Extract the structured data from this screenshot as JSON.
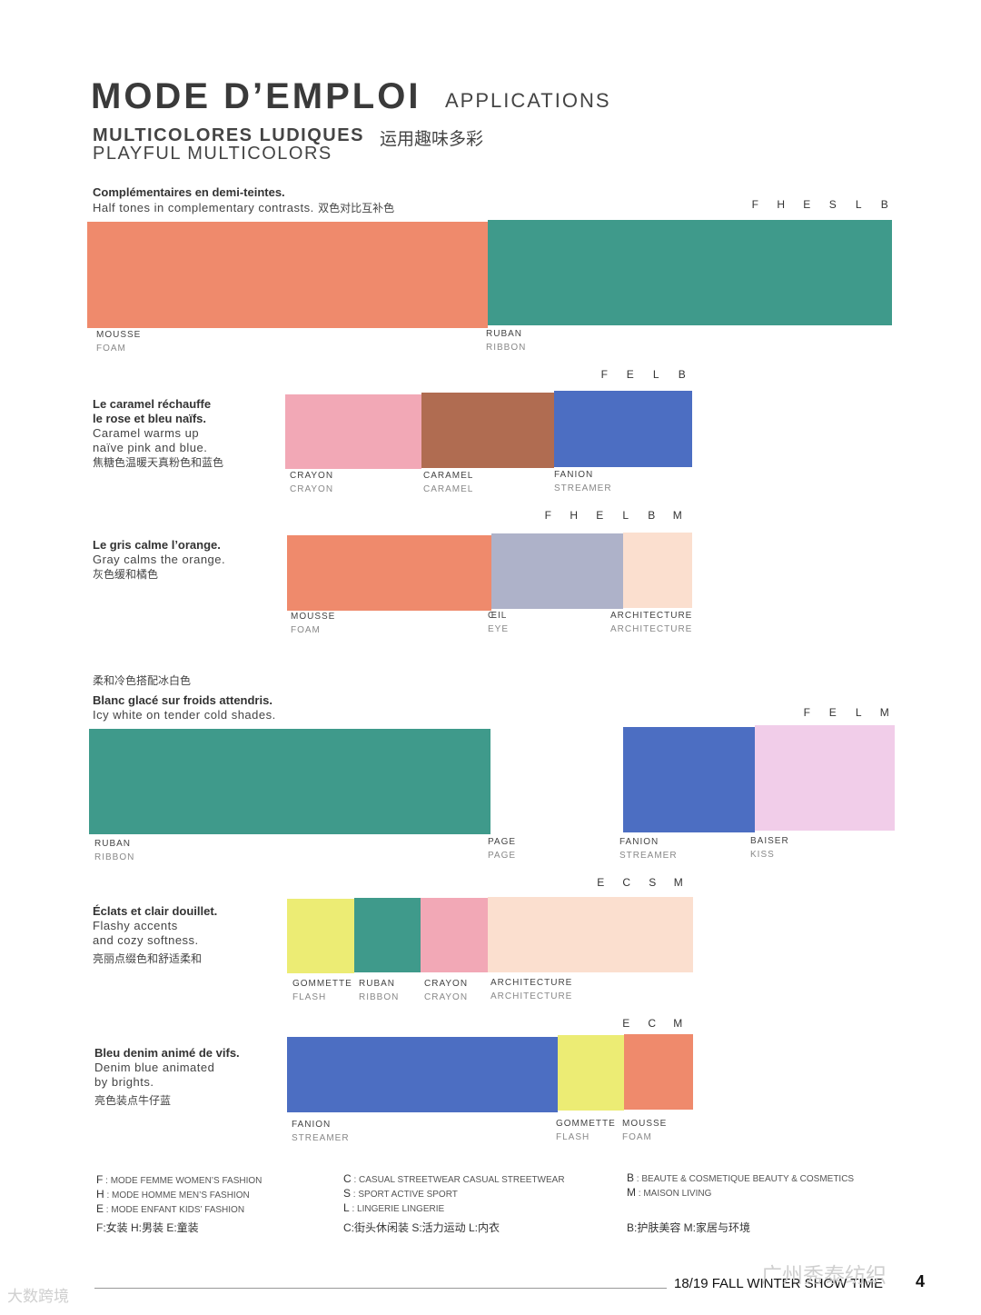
{
  "header": {
    "title": "MODE D’EMPLOI",
    "title_sub": "APPLICATIONS",
    "subtitle_fr": "MULTICOLORES LUDIQUES",
    "subtitle_zh": "运用趣味多彩",
    "subtitle_en": "PLAYFUL MULTICOLORS"
  },
  "sections": [
    {
      "fr": "Complémentaires en demi-teintes.",
      "en": "Half tones in complementary contrasts.",
      "zh": "双色对比互补色",
      "codes": [
        "F",
        "H",
        "E",
        "S",
        "L",
        "B"
      ],
      "swatches": [
        {
          "name_fr": "MOUSSE",
          "name_en": "FOAM",
          "color": "#ef8a6c"
        },
        {
          "name_fr": "RUBAN",
          "name_en": "RIBBON",
          "color": "#3f9a8b"
        }
      ]
    },
    {
      "fr1": "Le caramel réchauffe",
      "fr2": "le rose et bleu naïfs.",
      "en1": "Caramel warms up",
      "en2": "naïve pink and blue.",
      "zh": "焦糖色温暖天真粉色和蓝色",
      "codes": [
        "F",
        "E",
        "L",
        "B"
      ],
      "swatches": [
        {
          "name_fr": "CRAYON",
          "name_en": "CRAYON",
          "color": "#f2a8b6"
        },
        {
          "name_fr": "CARAMEL",
          "name_en": "CARAMEL",
          "color": "#b06c51"
        },
        {
          "name_fr": "FANION",
          "name_en": "STREAMER",
          "color": "#4c6ec2"
        }
      ]
    },
    {
      "fr": "Le gris calme l’orange.",
      "en": "Gray calms the orange.",
      "zh": "灰色缓和橘色",
      "codes": [
        "F",
        "H",
        "E",
        "L",
        "B",
        "M"
      ],
      "swatches": [
        {
          "name_fr": "MOUSSE",
          "name_en": "FOAM",
          "color": "#ef8a6c"
        },
        {
          "name_fr": "ŒIL",
          "name_en": "EYE",
          "color": "#aeb2c9"
        },
        {
          "name_fr": "ARCHITECTURE",
          "name_en": "ARCHITECTURE",
          "color": "#fbdfcf"
        }
      ]
    },
    {
      "zh": "柔和冷色搭配冰白色",
      "fr": "Blanc glacé sur froids attendris.",
      "en": "Icy white on tender cold shades.",
      "codes": [
        "F",
        "E",
        "L",
        "M"
      ],
      "swatches": [
        {
          "name_fr": "RUBAN",
          "name_en": "RIBBON",
          "color": "#3f9a8b"
        },
        {
          "name_fr": "PAGE",
          "name_en": "PAGE",
          "color": "#ffffff"
        },
        {
          "name_fr": "FANION",
          "name_en": "STREAMER",
          "color": "#4c6ec2"
        },
        {
          "name_fr": "BAISER",
          "name_en": "KISS",
          "color": "#f1cde9"
        }
      ]
    },
    {
      "fr": "Éclats et clair douillet.",
      "en1": "Flashy accents",
      "en2": "and cozy softness.",
      "zh": "亮丽点缀色和舒适柔和",
      "codes": [
        "E",
        "C",
        "S",
        "M"
      ],
      "swatches": [
        {
          "name_fr": "GOMMETTE",
          "name_en": "FLASH",
          "color": "#ecec74"
        },
        {
          "name_fr": "RUBAN",
          "name_en": "RIBBON",
          "color": "#3f9a8b"
        },
        {
          "name_fr": "CRAYON",
          "name_en": "CRAYON",
          "color": "#f2a8b6"
        },
        {
          "name_fr": "ARCHITECTURE",
          "name_en": "ARCHITECTURE",
          "color": "#fbdfcf"
        }
      ]
    },
    {
      "fr": "Bleu denim animé de vifs.",
      "en1": "Denim blue animated",
      "en2": "by brights.",
      "zh": "亮色装点牛仔蓝",
      "codes": [
        "E",
        "C",
        "M"
      ],
      "swatches": [
        {
          "name_fr": "FANION",
          "name_en": "STREAMER",
          "color": "#4c6ec2"
        },
        {
          "name_fr": "GOMMETTE",
          "name_en": "FLASH",
          "color": "#ecec74"
        },
        {
          "name_fr": "MOUSSE",
          "name_en": "FOAM",
          "color": "#ef8a6c"
        }
      ]
    }
  ],
  "legend": {
    "col1": [
      {
        "code": "F",
        "text": "MODE FEMME WOMEN’S FASHION"
      },
      {
        "code": "H",
        "text": "MODE HOMME MEN’S FASHION"
      },
      {
        "code": "E",
        "text": "MODE ENFANT KIDS’ FASHION"
      }
    ],
    "col1_zh": "F:女装   H:男装   E:童装",
    "col2": [
      {
        "code": "C",
        "text": "CASUAL STREETWEAR CASUAL STREETWEAR"
      },
      {
        "code": "S",
        "text": "SPORT ACTIVE SPORT"
      },
      {
        "code": "L",
        "text": "LINGERIE LINGERIE"
      }
    ],
    "col2_zh": "C:街头休闲装   S:活力运动   L:内衣",
    "col3": [
      {
        "code": "B",
        "text": "BEAUTE & COSMETIQUE BEAUTY & COSMETICS"
      },
      {
        "code": "M",
        "text": "MAISON LIVING"
      }
    ],
    "col3_zh": "B:护肤美容   M:家居与环境"
  },
  "footer": {
    "text": "18/19 FALL WINTER SHOW  TIME",
    "page": "4",
    "watermark_left": "大数跨境",
    "watermark_right": "广州秀泰纺织"
  }
}
